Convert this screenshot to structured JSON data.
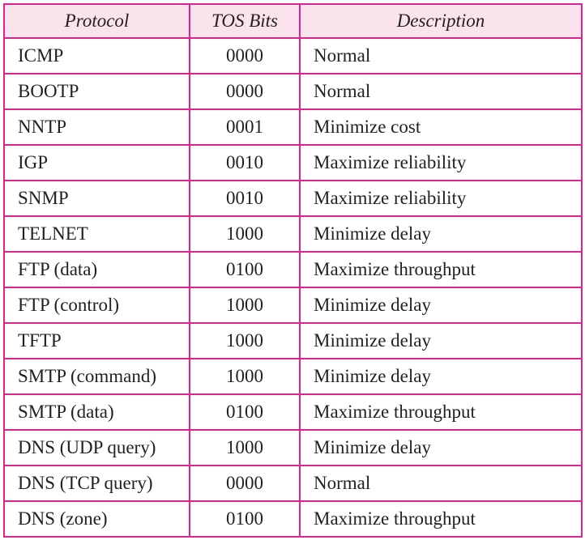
{
  "headers": {
    "protocol": "Protocol",
    "tos_bits": "TOS Bits",
    "description": "Description"
  },
  "rows": [
    {
      "protocol": "ICMP",
      "tos": "0000",
      "description": "Normal"
    },
    {
      "protocol": "BOOTP",
      "tos": "0000",
      "description": "Normal"
    },
    {
      "protocol": "NNTP",
      "tos": "0001",
      "description": "Minimize cost"
    },
    {
      "protocol": "IGP",
      "tos": "0010",
      "description": "Maximize reliability"
    },
    {
      "protocol": "SNMP",
      "tos": "0010",
      "description": "Maximize reliability"
    },
    {
      "protocol": "TELNET",
      "tos": "1000",
      "description": "Minimize delay"
    },
    {
      "protocol": "FTP (data)",
      "tos": "0100",
      "description": "Maximize throughput"
    },
    {
      "protocol": "FTP (control)",
      "tos": "1000",
      "description": "Minimize delay"
    },
    {
      "protocol": "TFTP",
      "tos": "1000",
      "description": "Minimize delay"
    },
    {
      "protocol": "SMTP (command)",
      "tos": "1000",
      "description": "Minimize delay"
    },
    {
      "protocol": "SMTP (data)",
      "tos": "0100",
      "description": "Maximize throughput"
    },
    {
      "protocol": "DNS (UDP query)",
      "tos": "1000",
      "description": "Minimize delay"
    },
    {
      "protocol": "DNS (TCP query)",
      "tos": "0000",
      "description": "Normal"
    },
    {
      "protocol": "DNS (zone)",
      "tos": "0100",
      "description": "Maximize throughput"
    }
  ],
  "colors": {
    "border": "#e0238c",
    "header_background": "#fbe3ee",
    "text": "#231f20"
  }
}
